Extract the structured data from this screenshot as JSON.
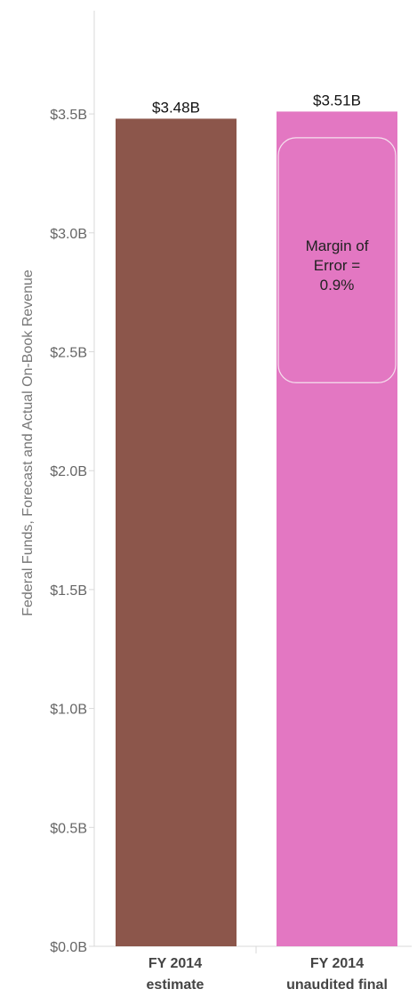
{
  "chart_data": {
    "type": "bar",
    "categories": [
      [
        "FY 2014",
        "estimate"
      ],
      [
        "FY 2014",
        "unaudited final"
      ]
    ],
    "values": [
      3.48,
      3.51
    ],
    "value_labels": [
      "$3.48B",
      "$3.51B"
    ],
    "colors": [
      "#8c564b",
      "#e377c2"
    ],
    "ylabel": "Federal Funds, Forecast and Actual On-Book Revenue",
    "yticks": [
      0,
      0.5,
      1.0,
      1.5,
      2.0,
      2.5,
      3.0,
      3.5
    ],
    "ytick_labels": [
      "$0.0B",
      "$0.5B",
      "$1.0B",
      "$1.5B",
      "$2.0B",
      "$2.5B",
      "$3.0B",
      "$3.5B"
    ],
    "ylim": [
      0,
      3.75
    ],
    "grid": false,
    "annotation": {
      "series_index": 1,
      "lines": [
        "Margin of",
        "Error =",
        "0.9%"
      ],
      "y_top": 3.4,
      "y_bottom": 2.37
    }
  }
}
